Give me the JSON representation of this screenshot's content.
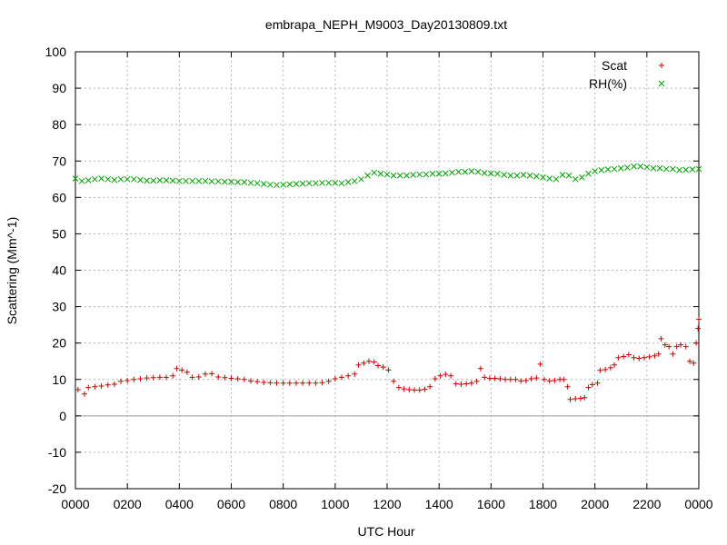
{
  "chart_data": {
    "type": "scatter",
    "title": "embrapa_NEPH_M9003_Day20130809.txt",
    "xlabel": "UTC Hour",
    "ylabel": "Scattering (Mm^-1)",
    "xlim": [
      0,
      24
    ],
    "ylim": [
      -20,
      100
    ],
    "x_ticks": [
      0,
      2,
      4,
      6,
      8,
      10,
      12,
      14,
      16,
      18,
      20,
      22,
      24
    ],
    "x_tick_labels": [
      "0000",
      "0200",
      "0400",
      "0600",
      "0800",
      "1000",
      "1200",
      "1400",
      "1600",
      "1800",
      "2000",
      "2200",
      "0000"
    ],
    "y_ticks": [
      -20,
      -10,
      0,
      10,
      20,
      30,
      40,
      50,
      60,
      70,
      80,
      90,
      100
    ],
    "grid": true,
    "legend_position": "top-right",
    "series": [
      {
        "name": "Scat",
        "color": "#cc0000",
        "marker": "plus",
        "points": [
          [
            0.1,
            7.2
          ],
          [
            0.35,
            6.0
          ],
          [
            0.5,
            7.8
          ],
          [
            0.75,
            8.0
          ],
          [
            1.0,
            8.2
          ],
          [
            1.25,
            8.5
          ],
          [
            1.5,
            8.7
          ],
          [
            1.75,
            9.5
          ],
          [
            2.0,
            9.7
          ],
          [
            2.25,
            10.0
          ],
          [
            2.5,
            10.2
          ],
          [
            2.75,
            10.4
          ],
          [
            3.0,
            10.5
          ],
          [
            3.25,
            10.6
          ],
          [
            3.5,
            10.6
          ],
          [
            3.75,
            11.0
          ],
          [
            3.9,
            13.0
          ],
          [
            4.1,
            12.6
          ],
          [
            4.3,
            12.0
          ],
          [
            4.5,
            10.6
          ],
          [
            4.75,
            10.7
          ],
          [
            5.0,
            11.5
          ],
          [
            5.25,
            11.6
          ],
          [
            5.5,
            10.7
          ],
          [
            5.75,
            10.5
          ],
          [
            6.0,
            10.3
          ],
          [
            6.25,
            10.2
          ],
          [
            6.5,
            10.0
          ],
          [
            6.75,
            9.6
          ],
          [
            7.0,
            9.4
          ],
          [
            7.25,
            9.2
          ],
          [
            7.5,
            9.1
          ],
          [
            7.75,
            9.0
          ],
          [
            8.0,
            9.0
          ],
          [
            8.25,
            9.0
          ],
          [
            8.5,
            9.0
          ],
          [
            8.75,
            9.0
          ],
          [
            9.0,
            9.0
          ],
          [
            9.25,
            9.0
          ],
          [
            9.5,
            9.1
          ],
          [
            9.75,
            9.5
          ],
          [
            10.0,
            10.2
          ],
          [
            10.25,
            10.6
          ],
          [
            10.5,
            11.0
          ],
          [
            10.75,
            11.5
          ],
          [
            10.9,
            14.0
          ],
          [
            11.1,
            14.5
          ],
          [
            11.3,
            15.0
          ],
          [
            11.5,
            14.8
          ],
          [
            11.65,
            13.8
          ],
          [
            11.85,
            13.4
          ],
          [
            12.05,
            12.6
          ],
          [
            12.25,
            9.5
          ],
          [
            12.45,
            7.8
          ],
          [
            12.65,
            7.4
          ],
          [
            12.85,
            7.2
          ],
          [
            13.05,
            7.1
          ],
          [
            13.25,
            7.1
          ],
          [
            13.45,
            7.3
          ],
          [
            13.65,
            8.0
          ],
          [
            13.85,
            10.2
          ],
          [
            14.05,
            11.0
          ],
          [
            14.25,
            11.4
          ],
          [
            14.45,
            11.0
          ],
          [
            14.65,
            8.8
          ],
          [
            14.85,
            8.7
          ],
          [
            15.05,
            8.8
          ],
          [
            15.25,
            9.0
          ],
          [
            15.45,
            9.5
          ],
          [
            15.6,
            13.0
          ],
          [
            15.75,
            10.6
          ],
          [
            15.95,
            10.3
          ],
          [
            16.15,
            10.3
          ],
          [
            16.35,
            10.2
          ],
          [
            16.55,
            10.0
          ],
          [
            16.75,
            10.0
          ],
          [
            16.95,
            10.0
          ],
          [
            17.15,
            9.6
          ],
          [
            17.35,
            9.7
          ],
          [
            17.55,
            10.2
          ],
          [
            17.75,
            10.4
          ],
          [
            17.9,
            14.2
          ],
          [
            18.05,
            10.0
          ],
          [
            18.25,
            9.6
          ],
          [
            18.45,
            9.7
          ],
          [
            18.65,
            10.0
          ],
          [
            18.8,
            10.0
          ],
          [
            18.95,
            8.0
          ],
          [
            19.05,
            4.5
          ],
          [
            19.25,
            4.7
          ],
          [
            19.45,
            4.8
          ],
          [
            19.6,
            5.0
          ],
          [
            19.75,
            7.8
          ],
          [
            19.9,
            8.6
          ],
          [
            20.1,
            9.0
          ],
          [
            20.2,
            12.5
          ],
          [
            20.4,
            12.7
          ],
          [
            20.6,
            13.2
          ],
          [
            20.75,
            14.0
          ],
          [
            20.9,
            16.0
          ],
          [
            21.1,
            16.3
          ],
          [
            21.3,
            16.8
          ],
          [
            21.5,
            16.0
          ],
          [
            21.7,
            15.8
          ],
          [
            21.9,
            16.0
          ],
          [
            22.1,
            16.2
          ],
          [
            22.3,
            16.5
          ],
          [
            22.45,
            17.0
          ],
          [
            22.55,
            21.2
          ],
          [
            22.7,
            19.5
          ],
          [
            22.85,
            19.0
          ],
          [
            23.0,
            17.0
          ],
          [
            23.15,
            19.0
          ],
          [
            23.3,
            19.5
          ],
          [
            23.5,
            19.0
          ],
          [
            23.65,
            15.0
          ],
          [
            23.8,
            14.5
          ],
          [
            23.9,
            20.0
          ],
          [
            23.97,
            24.0
          ],
          [
            24.0,
            26.5
          ]
        ]
      },
      {
        "name": "RH(%)",
        "color": "#00a000",
        "marker": "cross",
        "points": [
          [
            0.0,
            65.2
          ],
          [
            0.25,
            64.5
          ],
          [
            0.5,
            64.7
          ],
          [
            0.75,
            65.0
          ],
          [
            1.0,
            65.2
          ],
          [
            1.25,
            65.0
          ],
          [
            1.5,
            64.8
          ],
          [
            1.75,
            65.0
          ],
          [
            2.0,
            65.0
          ],
          [
            2.25,
            65.0
          ],
          [
            2.5,
            64.8
          ],
          [
            2.75,
            64.6
          ],
          [
            3.0,
            64.6
          ],
          [
            3.25,
            64.7
          ],
          [
            3.5,
            64.7
          ],
          [
            3.75,
            64.6
          ],
          [
            4.0,
            64.5
          ],
          [
            4.25,
            64.5
          ],
          [
            4.5,
            64.5
          ],
          [
            4.75,
            64.5
          ],
          [
            5.0,
            64.5
          ],
          [
            5.25,
            64.4
          ],
          [
            5.5,
            64.4
          ],
          [
            5.75,
            64.3
          ],
          [
            6.0,
            64.3
          ],
          [
            6.25,
            64.2
          ],
          [
            6.5,
            64.2
          ],
          [
            6.75,
            64.0
          ],
          [
            7.0,
            63.9
          ],
          [
            7.25,
            63.7
          ],
          [
            7.5,
            63.5
          ],
          [
            7.75,
            63.4
          ],
          [
            8.0,
            63.5
          ],
          [
            8.25,
            63.6
          ],
          [
            8.5,
            63.7
          ],
          [
            8.75,
            63.8
          ],
          [
            9.0,
            63.9
          ],
          [
            9.25,
            63.9
          ],
          [
            9.5,
            64.0
          ],
          [
            9.75,
            64.0
          ],
          [
            10.0,
            64.0
          ],
          [
            10.25,
            63.9
          ],
          [
            10.5,
            64.2
          ],
          [
            10.75,
            64.5
          ],
          [
            11.0,
            65.0
          ],
          [
            11.25,
            66.0
          ],
          [
            11.5,
            66.8
          ],
          [
            11.75,
            66.5
          ],
          [
            12.0,
            66.3
          ],
          [
            12.25,
            66.0
          ],
          [
            12.5,
            66.0
          ],
          [
            12.75,
            66.0
          ],
          [
            13.0,
            66.2
          ],
          [
            13.25,
            66.3
          ],
          [
            13.5,
            66.3
          ],
          [
            13.75,
            66.5
          ],
          [
            14.0,
            66.5
          ],
          [
            14.25,
            66.6
          ],
          [
            14.5,
            66.8
          ],
          [
            14.75,
            67.0
          ],
          [
            15.0,
            67.0
          ],
          [
            15.25,
            67.2
          ],
          [
            15.5,
            67.0
          ],
          [
            15.75,
            66.7
          ],
          [
            16.0,
            66.6
          ],
          [
            16.25,
            66.5
          ],
          [
            16.5,
            66.2
          ],
          [
            16.75,
            66.0
          ],
          [
            17.0,
            66.0
          ],
          [
            17.25,
            66.2
          ],
          [
            17.5,
            66.0
          ],
          [
            17.75,
            65.8
          ],
          [
            18.0,
            65.5
          ],
          [
            18.25,
            65.2
          ],
          [
            18.5,
            65.0
          ],
          [
            18.75,
            66.2
          ],
          [
            19.0,
            66.0
          ],
          [
            19.25,
            65.0
          ],
          [
            19.5,
            65.5
          ],
          [
            19.75,
            66.5
          ],
          [
            20.0,
            67.2
          ],
          [
            20.25,
            67.5
          ],
          [
            20.5,
            67.7
          ],
          [
            20.75,
            67.8
          ],
          [
            21.0,
            68.0
          ],
          [
            21.25,
            68.2
          ],
          [
            21.5,
            68.5
          ],
          [
            21.75,
            68.5
          ],
          [
            22.0,
            68.3
          ],
          [
            22.25,
            68.0
          ],
          [
            22.5,
            68.0
          ],
          [
            22.75,
            67.8
          ],
          [
            23.0,
            67.8
          ],
          [
            23.25,
            67.5
          ],
          [
            23.5,
            67.6
          ],
          [
            23.75,
            67.7
          ],
          [
            24.0,
            67.8
          ]
        ]
      }
    ]
  }
}
